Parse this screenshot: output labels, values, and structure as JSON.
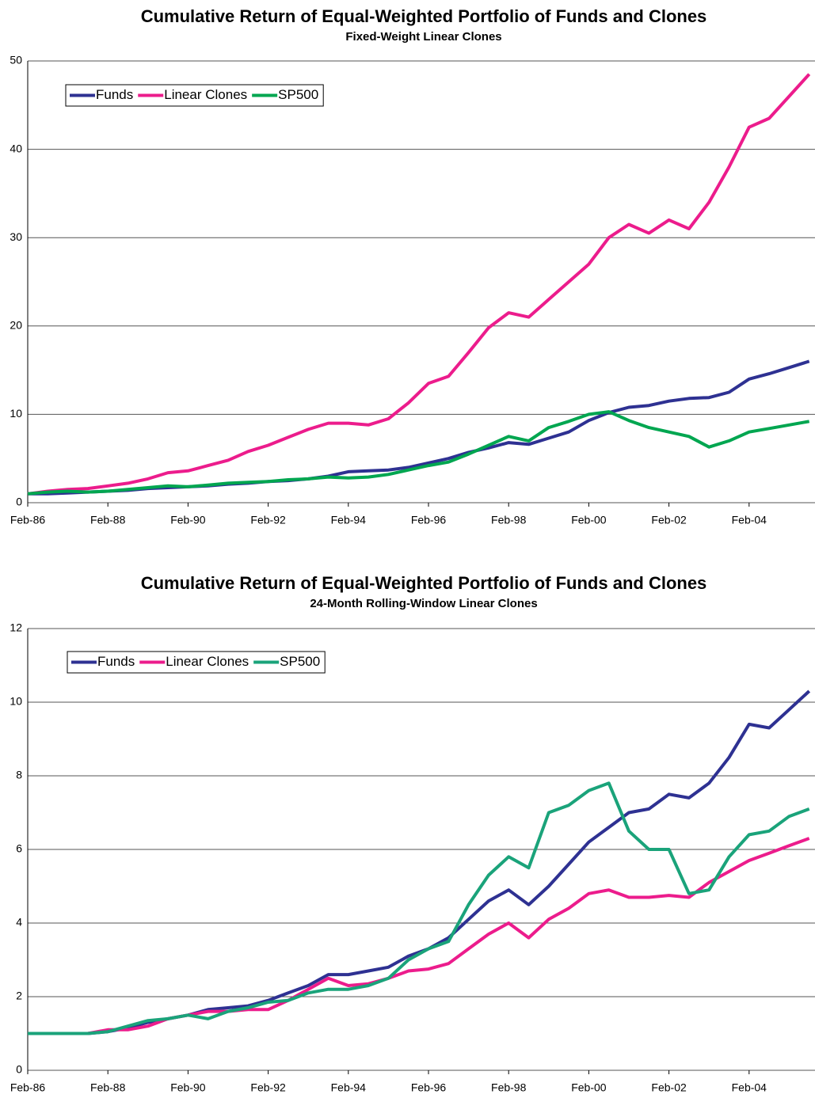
{
  "chart_data": [
    {
      "type": "line",
      "title": "Cumulative Return of Equal-Weighted Portfolio of Funds and Clones",
      "subtitle": "Fixed-Weight Linear Clones",
      "categories": [
        "Feb-86",
        null,
        null,
        null,
        "Feb-88",
        null,
        null,
        null,
        "Feb-90",
        null,
        null,
        null,
        "Feb-92",
        null,
        null,
        null,
        "Feb-94",
        null,
        null,
        null,
        "Feb-96",
        null,
        null,
        null,
        "Feb-98",
        null,
        null,
        null,
        "Feb-00",
        null,
        null,
        null,
        "Feb-02",
        null,
        null,
        null,
        "Feb-04",
        null,
        null,
        null
      ],
      "ylim": [
        0,
        50
      ],
      "yticks": [
        0,
        10,
        20,
        30,
        40,
        50
      ],
      "grid": true,
      "legend": "top-left",
      "series": [
        {
          "name": "Funds",
          "color": "#2e3192",
          "values": [
            1.0,
            1.0,
            1.1,
            1.2,
            1.3,
            1.4,
            1.6,
            1.7,
            1.8,
            1.9,
            2.1,
            2.2,
            2.4,
            2.5,
            2.7,
            3.0,
            3.5,
            3.6,
            3.7,
            4.0,
            4.5,
            5.0,
            5.7,
            6.2,
            6.8,
            6.6,
            7.3,
            8.0,
            9.3,
            10.2,
            10.8,
            11.0,
            11.5,
            11.8,
            11.9,
            12.5,
            14.0,
            14.6,
            15.3,
            16.0
          ]
        },
        {
          "name": "Linear Clones",
          "color": "#ec1c8c",
          "values": [
            1.0,
            1.3,
            1.5,
            1.6,
            1.9,
            2.2,
            2.7,
            3.4,
            3.6,
            4.2,
            4.8,
            5.8,
            6.5,
            7.4,
            8.3,
            9.0,
            9.0,
            8.8,
            9.5,
            11.3,
            13.5,
            14.3,
            17.0,
            19.8,
            21.5,
            21.0,
            23.0,
            25.0,
            27.0,
            30.0,
            31.5,
            30.5,
            32.0,
            31.0,
            34.0,
            38.0,
            42.5,
            43.5,
            46.0,
            48.5
          ]
        },
        {
          "name": "SP500",
          "color": "#00a650",
          "values": [
            1.0,
            1.2,
            1.3,
            1.2,
            1.3,
            1.5,
            1.7,
            1.9,
            1.8,
            2.0,
            2.2,
            2.3,
            2.4,
            2.6,
            2.7,
            2.9,
            2.8,
            2.9,
            3.2,
            3.7,
            4.2,
            4.6,
            5.5,
            6.5,
            7.5,
            7.0,
            8.5,
            9.2,
            10.0,
            10.3,
            9.3,
            8.5,
            8.0,
            7.5,
            6.3,
            7.0,
            8.0,
            8.4,
            8.8,
            9.2
          ]
        }
      ]
    },
    {
      "type": "line",
      "title": "Cumulative Return of Equal-Weighted Portfolio of Funds and Clones",
      "subtitle": "24-Month Rolling-Window Linear Clones",
      "categories": [
        "Feb-86",
        null,
        null,
        null,
        "Feb-88",
        null,
        null,
        null,
        "Feb-90",
        null,
        null,
        null,
        "Feb-92",
        null,
        null,
        null,
        "Feb-94",
        null,
        null,
        null,
        "Feb-96",
        null,
        null,
        null,
        "Feb-98",
        null,
        null,
        null,
        "Feb-00",
        null,
        null,
        null,
        "Feb-02",
        null,
        null,
        null,
        "Feb-04",
        null,
        null,
        null
      ],
      "ylim": [
        0,
        12
      ],
      "yticks": [
        0,
        2,
        4,
        6,
        8,
        10,
        12
      ],
      "grid": true,
      "legend": "top-left",
      "series": [
        {
          "name": "Funds",
          "color": "#2e3192",
          "values": [
            1.0,
            1.0,
            1.0,
            1.0,
            1.05,
            1.15,
            1.3,
            1.4,
            1.5,
            1.65,
            1.7,
            1.75,
            1.9,
            2.1,
            2.3,
            2.6,
            2.6,
            2.7,
            2.8,
            3.1,
            3.3,
            3.6,
            4.1,
            4.6,
            4.9,
            4.5,
            5.0,
            5.6,
            6.2,
            6.6,
            7.0,
            7.1,
            7.5,
            7.4,
            7.8,
            8.5,
            9.4,
            9.3,
            9.8,
            10.3
          ]
        },
        {
          "name": "Linear Clones",
          "color": "#ec1c8c",
          "values": [
            1.0,
            1.0,
            1.0,
            1.0,
            1.1,
            1.1,
            1.2,
            1.4,
            1.5,
            1.6,
            1.6,
            1.65,
            1.65,
            1.9,
            2.2,
            2.5,
            2.3,
            2.35,
            2.5,
            2.7,
            2.75,
            2.9,
            3.3,
            3.7,
            4.0,
            3.6,
            4.1,
            4.4,
            4.8,
            4.9,
            4.7,
            4.7,
            4.75,
            4.7,
            5.1,
            5.4,
            5.7,
            5.9,
            6.1,
            6.3
          ]
        },
        {
          "name": "SP500",
          "color": "#1aa37a",
          "values": [
            1.0,
            1.0,
            1.0,
            1.0,
            1.05,
            1.2,
            1.35,
            1.4,
            1.5,
            1.4,
            1.6,
            1.7,
            1.85,
            1.9,
            2.1,
            2.2,
            2.2,
            2.3,
            2.5,
            3.0,
            3.3,
            3.5,
            4.5,
            5.3,
            5.8,
            5.5,
            7.0,
            7.2,
            7.6,
            7.8,
            6.5,
            6.0,
            6.0,
            4.8,
            4.9,
            5.8,
            6.4,
            6.5,
            6.9,
            7.1
          ]
        }
      ]
    }
  ]
}
